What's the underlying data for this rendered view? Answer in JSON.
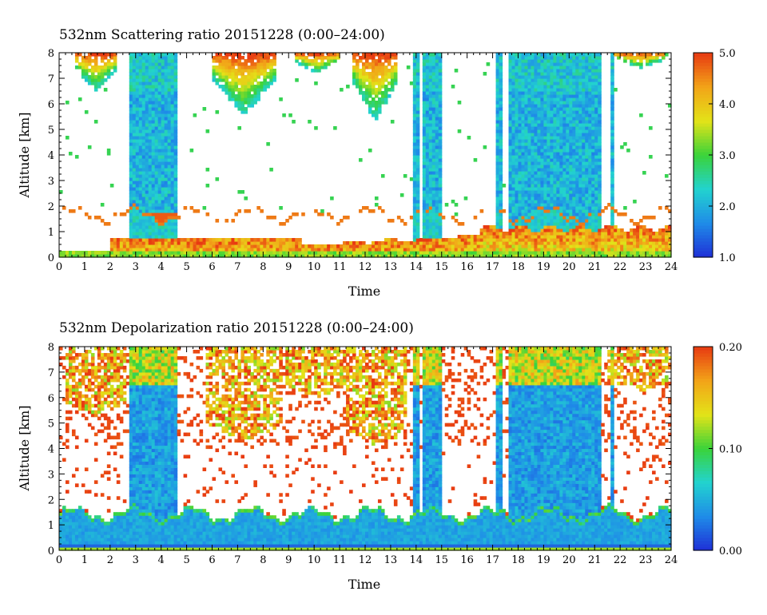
{
  "chart_data": [
    {
      "type": "heatmap",
      "title": "532nm Scattering ratio  20151228 (0:00–24:00)",
      "xlabel": "Time",
      "ylabel": "Altitude [km]",
      "x_ticks": [
        "0",
        "1",
        "2",
        "3",
        "4",
        "5",
        "6",
        "7",
        "8",
        "9",
        "10",
        "11",
        "12",
        "13",
        "14",
        "15",
        "16",
        "17",
        "18",
        "19",
        "20",
        "21",
        "22",
        "23",
        "24"
      ],
      "y_ticks": [
        "0",
        "1",
        "2",
        "3",
        "4",
        "5",
        "6",
        "7",
        "8"
      ],
      "xlim": [
        0,
        24
      ],
      "ylim": [
        0,
        8
      ],
      "colorbar": {
        "min": 1.0,
        "max": 5.0,
        "ticks": [
          "1.0",
          "2.0",
          "3.0",
          "4.0",
          "5.0"
        ]
      },
      "colormap": [
        "#1f2fd6",
        "#1f8be8",
        "#22d3cf",
        "#3ad33a",
        "#e3e318",
        "#f2a418",
        "#e83a12"
      ],
      "no_data_color": "#ffffff"
    },
    {
      "type": "heatmap",
      "title": "532nm Depolarization ratio  20151228 (0:00–24:00)",
      "xlabel": "Time",
      "ylabel": "Altitude [km]",
      "x_ticks": [
        "0",
        "1",
        "2",
        "3",
        "4",
        "5",
        "6",
        "7",
        "8",
        "9",
        "10",
        "11",
        "12",
        "13",
        "14",
        "15",
        "16",
        "17",
        "18",
        "19",
        "20",
        "21",
        "22",
        "23",
        "24"
      ],
      "y_ticks": [
        "0",
        "1",
        "2",
        "3",
        "4",
        "5",
        "6",
        "7",
        "8"
      ],
      "xlim": [
        0,
        24
      ],
      "ylim": [
        0,
        8
      ],
      "colorbar": {
        "min": 0.0,
        "max": 0.2,
        "ticks": [
          "0.00",
          "0.10",
          "0.20"
        ]
      },
      "colormap": [
        "#1f2fd6",
        "#1f8be8",
        "#22d3cf",
        "#3ad33a",
        "#e3e318",
        "#f2a418",
        "#e83a12"
      ],
      "no_data_color": "#ffffff"
    }
  ]
}
